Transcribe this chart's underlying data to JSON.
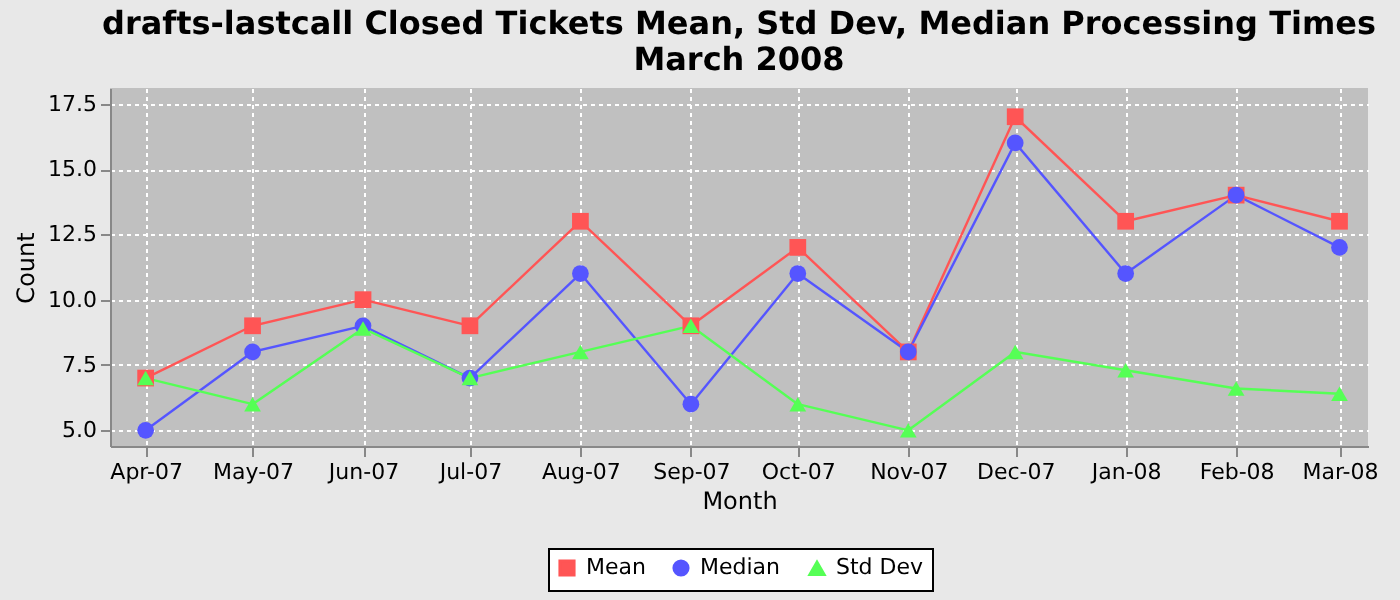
{
  "chart_data": {
    "type": "line",
    "title": "drafts-lastcall Closed Tickets Mean, Std Dev, Median Processing Times",
    "subtitle": "March 2008",
    "xlabel": "Month",
    "ylabel": "Count",
    "x": [
      "2007-04-01",
      "2007-05-01",
      "2007-06-01",
      "2007-07-01",
      "2007-08-01",
      "2007-09-01",
      "2007-10-01",
      "2007-11-01",
      "2007-12-01",
      "2008-01-01",
      "2008-02-01",
      "2008-03-01"
    ],
    "series": [
      {
        "name": "Mean",
        "color": "#ff5555",
        "marker": "square",
        "values": [
          7,
          9,
          10,
          9,
          13,
          9,
          12,
          8,
          17,
          13,
          14,
          13
        ]
      },
      {
        "name": "Median",
        "color": "#5555ff",
        "marker": "circle",
        "values": [
          5,
          8,
          9,
          7,
          11,
          6,
          11,
          8,
          16,
          11,
          14,
          12
        ]
      },
      {
        "name": "Std Dev",
        "color": "#55ff55",
        "marker": "triangle",
        "values": [
          7,
          6,
          8.9,
          7,
          8,
          9,
          6,
          5,
          8,
          7.3,
          6.6,
          6.4
        ]
      }
    ],
    "xlim": [
      "2007-03-22",
      "2008-03-09"
    ],
    "xticks": [
      {
        "value": "2007-04-01",
        "label": "Apr-07"
      },
      {
        "value": "2007-05-01",
        "label": "May-07"
      },
      {
        "value": "2007-06-01",
        "label": "Jun-07"
      },
      {
        "value": "2007-07-01",
        "label": "Jul-07"
      },
      {
        "value": "2007-08-01",
        "label": "Aug-07"
      },
      {
        "value": "2007-09-01",
        "label": "Sep-07"
      },
      {
        "value": "2007-10-01",
        "label": "Oct-07"
      },
      {
        "value": "2007-11-01",
        "label": "Nov-07"
      },
      {
        "value": "2007-12-01",
        "label": "Dec-07"
      },
      {
        "value": "2008-01-01",
        "label": "Jan-08"
      },
      {
        "value": "2008-02-01",
        "label": "Feb-08"
      },
      {
        "value": "2008-03-01",
        "label": "Mar-08"
      }
    ],
    "ylim": [
      4.4,
      18.1
    ],
    "yticks": [
      {
        "value": 5,
        "label": "5.0"
      },
      {
        "value": 7.5,
        "label": "7.5"
      },
      {
        "value": 10,
        "label": "10.0"
      },
      {
        "value": 12.5,
        "label": "12.5"
      },
      {
        "value": 15,
        "label": "15.0"
      },
      {
        "value": 17.5,
        "label": "17.5"
      }
    ],
    "grid": true,
    "legend": "bottom",
    "line_style": "solid"
  }
}
